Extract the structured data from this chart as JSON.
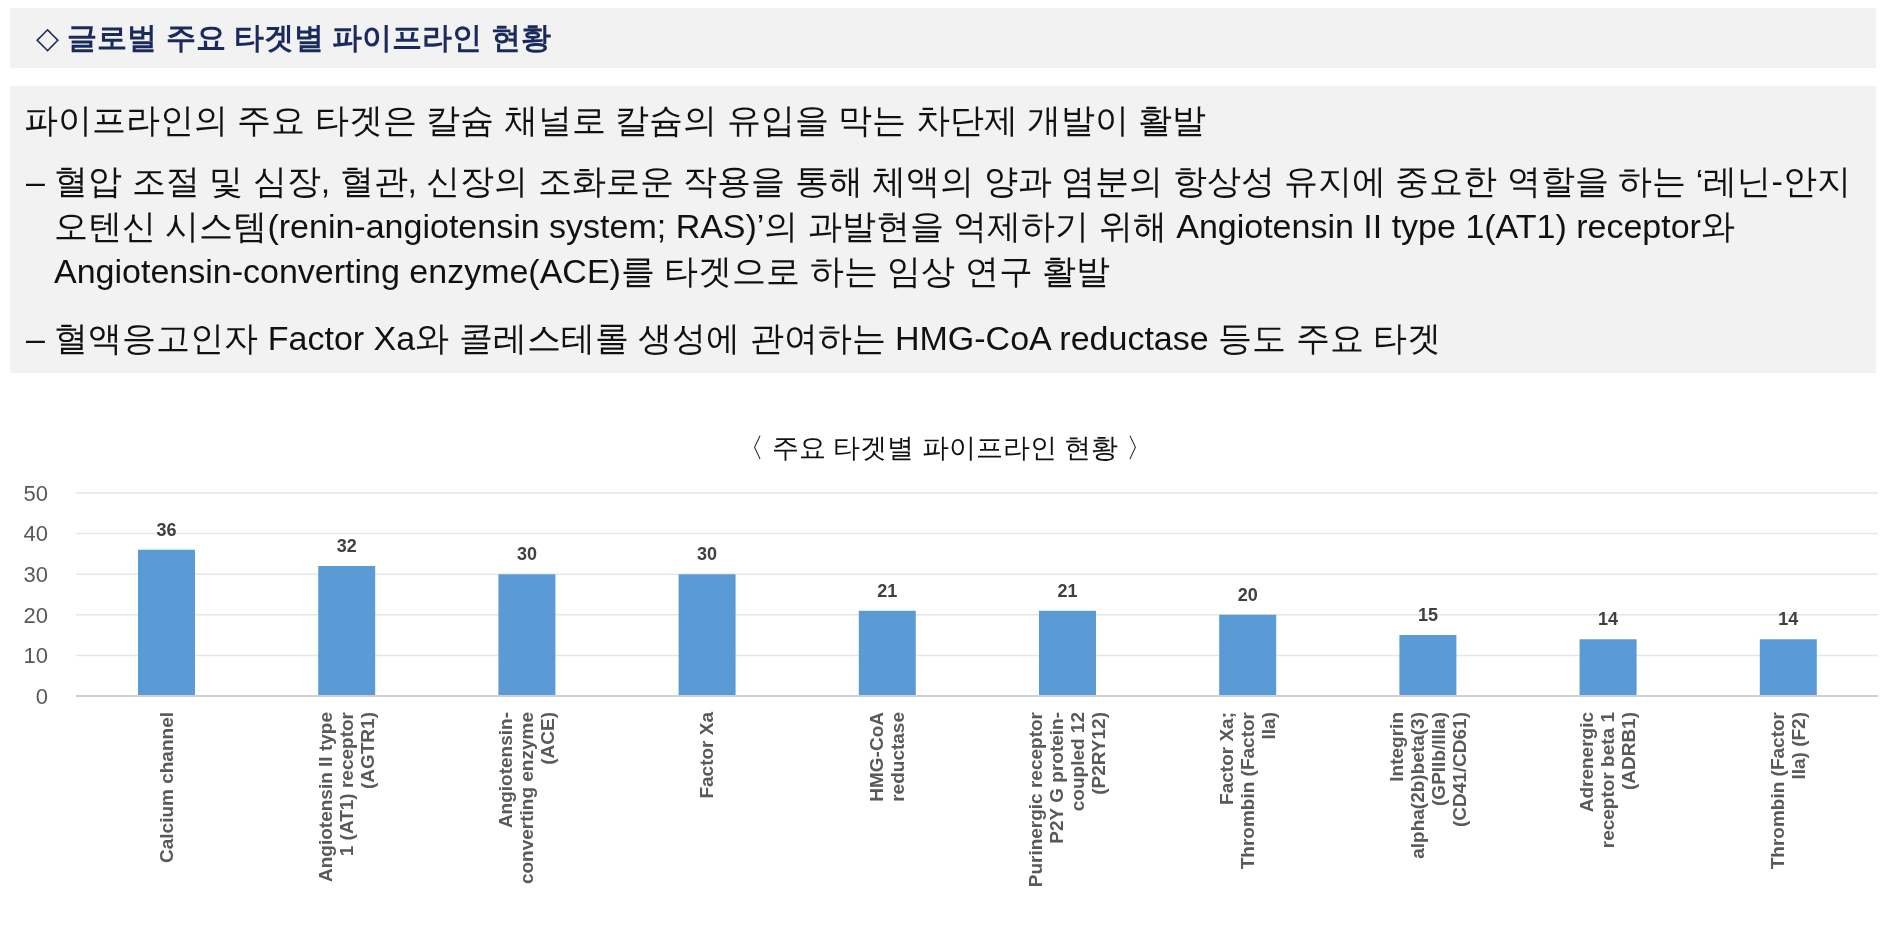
{
  "chart_data": {
    "type": "bar",
    "title": "〈 주요 타겟별 파이프라인 현황 〉",
    "annotations": [
      "◇ 글로벌 주요 타겟별 파이프라인 현황",
      "파이프라인의 주요 타겟은 칼슘 채널로 칼슘의 유입을 막는 차단제 개발이 활발",
      "– 혈압 조절 및 심장, 혈관, 신장의 조화로운 작용을 통해 체액의 양과 염분의 항상성 유지에 중요한 역할을 하는 ‘레닌-안지오텐신 시스템(renin-angiotensin system; RAS)’의 과발현을 억제하기 위해 Angiotensin II type 1(AT1) receptor와 Angiotensin-converting enzyme(ACE)를 타겟으로 하는 임상 연구 활발",
      "– 혈액응고인자 Factor Xa와 콜레스테롤 생성에 관여하는 HMG-CoA reductase 등도 주요 타겟"
    ],
    "categories": [
      "Calcium channel",
      "Angiotensin II type 1 (AT1) receptor (AGTR1)",
      "Angiotensin-converting enzyme (ACE)",
      "Factor Xa",
      "HMG-CoA reductase",
      "Purinergic receptor P2Y G protein-coupled 12 (P2RY12)",
      "Factor Xa; Thrombin (Factor IIa)",
      "Integrin alpha(2b)beta(3) (GPIIb/IIIa) (CD41/CD61)",
      "Adrenergic receptor beta 1 (ADRB1)",
      "Thrombin (Factor IIa) (F2)"
    ],
    "values": [
      36,
      32,
      30,
      30,
      21,
      21,
      20,
      15,
      14,
      14
    ],
    "color": "#5b9bd5",
    "ylim": [
      0,
      50
    ],
    "yticks": [
      0,
      10,
      20,
      30,
      40,
      50
    ],
    "grid": "y",
    "data_labels": true
  }
}
